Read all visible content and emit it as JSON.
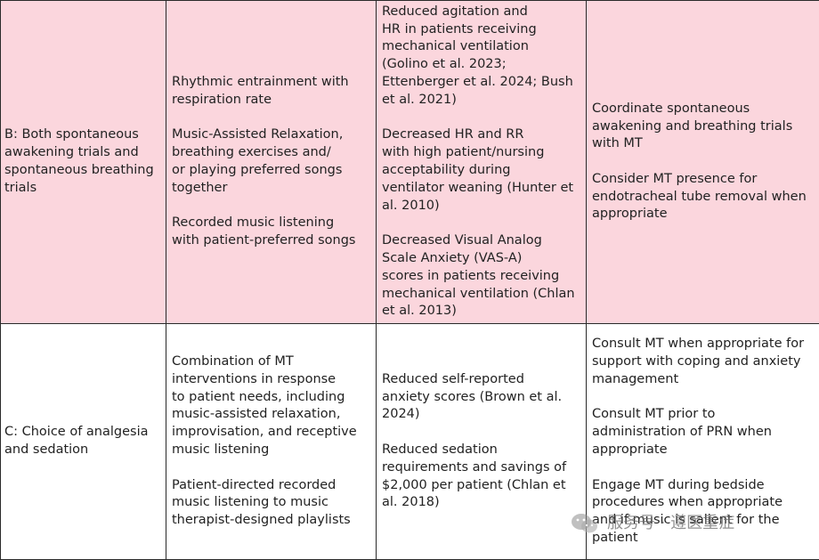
{
  "rows": [
    {
      "stage": "B: Both spontaneous\nawakening trials and\nspontaneous breathing\ntrials",
      "interventions": [
        "Rhythmic entrainment with\nrespiration rate",
        "Music-Assisted Relaxation,\nbreathing exercises and/\nor playing preferred songs\ntogether",
        "Recorded music listening\nwith patient-preferred songs"
      ],
      "evidence": [
        "Reduced agitation and\nHR in patients receiving\nmechanical ventilation\n(Golino et al. 2023;\nEttenberger et al. 2024; Bush\net al. 2021)",
        "Decreased HR and RR\nwith high patient/nursing\nacceptability during\nventilator weaning (Hunter et\nal. 2010)",
        "Decreased Visual Analog\nScale Anxiety (VAS-A)\nscores in patients receiving\nmechanical ventilation (Chlan\net al. 2013)"
      ],
      "recommendations": [
        "Coordinate spontaneous\nawakening and breathing trials\nwith MT",
        "Consider MT presence for\nendotracheal tube removal when\nappropriate"
      ]
    },
    {
      "stage": "C: Choice of analgesia\nand sedation",
      "interventions": [
        "Combination of MT\ninterventions in response\nto patient needs, including\nmusic-assisted relaxation,\nimprovisation, and receptive\nmusic listening",
        "Patient-directed recorded\nmusic listening to music\ntherapist-designed playlists"
      ],
      "evidence": [
        "Reduced self-reported\nanxiety scores (Brown et al.\n2024)",
        "Reduced sedation\nrequirements and savings of\n$2,000 per patient (Chlan et\nal. 2018)"
      ],
      "recommendations": [
        "Consult MT when appropriate for\nsupport with coping and anxiety\nmanagement",
        "Consult MT prior to\nadministration of PRN when\nappropriate",
        "Engage MT during bedside\nprocedures when appropriate\nand if music is salient for the\npatient"
      ]
    }
  ],
  "watermark": {
    "text": "服务号 · 遵医重症",
    "icon": "wechat-icon"
  }
}
